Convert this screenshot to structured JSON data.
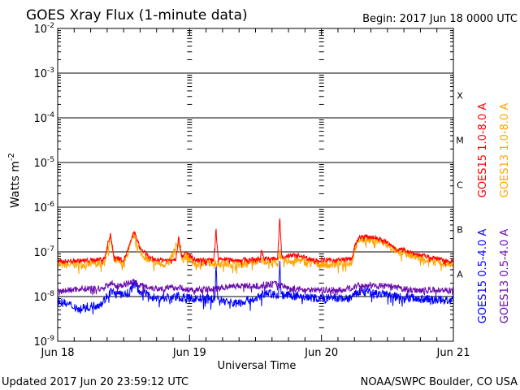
{
  "chart_data": {
    "type": "line",
    "title": "GOES Xray Flux (1-minute data)",
    "begin_label": "Begin:  2017 Jun 18 0000 UTC",
    "xlabel": "Universal Time",
    "ylabel": "Watts m",
    "ylabel_sup": "-2",
    "x_unit": "hours since 2017 Jun 18 0000 UTC",
    "xlim": [
      0,
      72
    ],
    "ylim": [
      1e-09,
      0.01
    ],
    "yscale": "log",
    "x_ticks": [
      {
        "value": 0,
        "label": "Jun 18"
      },
      {
        "value": 24,
        "label": "Jun 19"
      },
      {
        "value": 48,
        "label": "Jun 20"
      },
      {
        "value": 72,
        "label": "Jun 21"
      }
    ],
    "y_ticks": [
      {
        "exp": -9,
        "base": "10",
        "sup": "-9"
      },
      {
        "exp": -8,
        "base": "10",
        "sup": "-8"
      },
      {
        "exp": -7,
        "base": "10",
        "sup": "-7"
      },
      {
        "exp": -6,
        "base": "10",
        "sup": "-6"
      },
      {
        "exp": -5,
        "base": "10",
        "sup": "-5"
      },
      {
        "exp": -4,
        "base": "10",
        "sup": "-4"
      },
      {
        "exp": -3,
        "base": "10",
        "sup": "-3"
      },
      {
        "exp": -2,
        "base": "10",
        "sup": "-2"
      }
    ],
    "grid": "horizontal at each decade 1e-8 to 1e-3",
    "flare_classes": [
      {
        "label": "X",
        "exp": -3.5
      },
      {
        "label": "M",
        "exp": -4.5
      },
      {
        "label": "C",
        "exp": -5.5
      },
      {
        "label": "B",
        "exp": -6.5
      },
      {
        "label": "A",
        "exp": -7.5
      }
    ],
    "series": [
      {
        "name": "GOES15 1.0-8.0 A",
        "color": "#ff0000",
        "legend_column": 1,
        "points": [
          [
            0,
            6e-08
          ],
          [
            3,
            6.3e-08
          ],
          [
            6,
            6.5e-08
          ],
          [
            8.5,
            7e-08
          ],
          [
            9.6,
            2.6e-07
          ],
          [
            10.2,
            8e-08
          ],
          [
            12,
            6.5e-08
          ],
          [
            13,
            1.3e-07
          ],
          [
            13.9,
            2.9e-07
          ],
          [
            15,
            1.2e-07
          ],
          [
            17,
            7e-08
          ],
          [
            20,
            6.5e-08
          ],
          [
            21.5,
            7e-08
          ],
          [
            22,
            2.1e-07
          ],
          [
            22.6,
            8e-08
          ],
          [
            23.4,
            9.5e-08
          ],
          [
            25,
            6.5e-08
          ],
          [
            28.4,
            6.5e-08
          ],
          [
            28.8,
            3e-07
          ],
          [
            29.2,
            7e-08
          ],
          [
            33,
            6.5e-08
          ],
          [
            36.8,
            7e-08
          ],
          [
            37.1,
            1.1e-07
          ],
          [
            37.5,
            7e-08
          ],
          [
            40,
            7e-08
          ],
          [
            40.4,
            5e-07
          ],
          [
            40.8,
            8e-08
          ],
          [
            44,
            8.5e-08
          ],
          [
            46,
            6.8e-08
          ],
          [
            50,
            6.5e-08
          ],
          [
            53.5,
            7e-08
          ],
          [
            54.2,
            1.5e-07
          ],
          [
            55,
            2.2e-07
          ],
          [
            58,
            2.1e-07
          ],
          [
            60,
            1.6e-07
          ],
          [
            62,
            1.1e-07
          ],
          [
            63,
            1.15e-07
          ],
          [
            65,
            9e-08
          ],
          [
            68,
            7.5e-08
          ],
          [
            72,
            6e-08
          ]
        ]
      },
      {
        "name": "GOES13 1.0-8.0 A",
        "color": "#ffa500",
        "legend_column": 2,
        "points": [
          [
            0,
            5e-08
          ],
          [
            3,
            5.2e-08
          ],
          [
            6,
            5.3e-08
          ],
          [
            8.5,
            5.8e-08
          ],
          [
            9.6,
            2.1e-07
          ],
          [
            10.2,
            6.5e-08
          ],
          [
            12,
            5.3e-08
          ],
          [
            13,
            1.1e-07
          ],
          [
            13.9,
            2.5e-07
          ],
          [
            15,
            1e-07
          ],
          [
            17,
            5.8e-08
          ],
          [
            20,
            5.2e-08
          ],
          [
            22,
            1.7e-07
          ],
          [
            22.6,
            6.5e-08
          ],
          [
            23.4,
            8e-08
          ],
          [
            25,
            5.3e-08
          ],
          [
            28.8,
            6e-08
          ],
          [
            29.2,
            5.5e-08
          ],
          [
            33,
            5.3e-08
          ],
          [
            37.1,
            6.5e-08
          ],
          [
            40,
            5.8e-08
          ],
          [
            40.4,
            1e-07
          ],
          [
            40.8,
            6.2e-08
          ],
          [
            44,
            6.5e-08
          ],
          [
            46,
            5.5e-08
          ],
          [
            50,
            5.2e-08
          ],
          [
            53.5,
            5.8e-08
          ],
          [
            54.2,
            1.3e-07
          ],
          [
            55,
            1.9e-07
          ],
          [
            58,
            1.8e-07
          ],
          [
            60,
            1.4e-07
          ],
          [
            62,
            9.5e-08
          ],
          [
            63,
            1e-07
          ],
          [
            65,
            7.8e-08
          ],
          [
            68,
            6.3e-08
          ],
          [
            72,
            5.2e-08
          ]
        ]
      },
      {
        "name": "GOES13 0.5-4.0 A",
        "color": "#6a0dad",
        "legend_column": 2,
        "points": [
          [
            0,
            1.3e-08
          ],
          [
            4,
            1.5e-08
          ],
          [
            8,
            1.5e-08
          ],
          [
            9.6,
            2e-08
          ],
          [
            11,
            1.7e-08
          ],
          [
            13.9,
            2.2e-08
          ],
          [
            15,
            1.8e-08
          ],
          [
            18,
            1.5e-08
          ],
          [
            22,
            1.6e-08
          ],
          [
            24,
            1.4e-08
          ],
          [
            28.8,
            1.5e-08
          ],
          [
            32,
            1.8e-08
          ],
          [
            36,
            1.7e-08
          ],
          [
            40.4,
            2e-08
          ],
          [
            42,
            1.5e-08
          ],
          [
            48,
            1.4e-08
          ],
          [
            52,
            1.4e-08
          ],
          [
            55,
            1.8e-08
          ],
          [
            60,
            1.7e-08
          ],
          [
            64,
            1.4e-08
          ],
          [
            72,
            1.4e-08
          ]
        ]
      },
      {
        "name": "GOES15 0.5-4.0 A",
        "color": "#0000ff",
        "legend_column": 1,
        "points": [
          [
            0,
            8e-09
          ],
          [
            2,
            6.5e-09
          ],
          [
            4,
            5.5e-09
          ],
          [
            6,
            6e-09
          ],
          [
            8,
            7e-09
          ],
          [
            9.6,
            1.3e-08
          ],
          [
            11,
            1.1e-08
          ],
          [
            13,
            1.2e-08
          ],
          [
            13.9,
            2e-08
          ],
          [
            15,
            1.3e-08
          ],
          [
            18,
            9e-09
          ],
          [
            22,
            1e-08
          ],
          [
            24,
            9e-09
          ],
          [
            28.6,
            9e-09
          ],
          [
            28.8,
            4.5e-08
          ],
          [
            29.1,
            9e-09
          ],
          [
            32,
            7e-09
          ],
          [
            36,
            9e-09
          ],
          [
            38,
            1.2e-08
          ],
          [
            40.2,
            1.1e-08
          ],
          [
            40.4,
            5.5e-08
          ],
          [
            40.7,
            1.1e-08
          ],
          [
            44,
            1e-08
          ],
          [
            48,
            9e-09
          ],
          [
            53,
            9e-09
          ],
          [
            55,
            1.3e-08
          ],
          [
            58,
            1.2e-08
          ],
          [
            62,
            1e-08
          ],
          [
            66,
            9e-09
          ],
          [
            72,
            8e-09
          ]
        ]
      }
    ]
  },
  "footer": {
    "updated": "Updated 2017 Jun 20 23:59:12 UTC",
    "credit": "NOAA/SWPC Boulder, CO USA"
  }
}
